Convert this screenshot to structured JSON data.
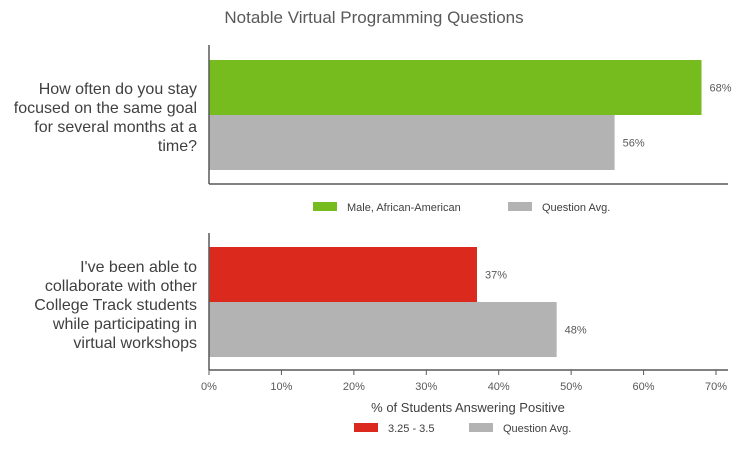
{
  "chart_data": {
    "type": "bar",
    "orientation": "horizontal",
    "title": "Notable Virtual Programming Questions",
    "xlabel": "% of Students Answering Positive",
    "xlim": [
      0,
      70
    ],
    "xticks": [
      "0%",
      "10%",
      "20%",
      "30%",
      "40%",
      "50%",
      "60%",
      "70%"
    ],
    "grid": false,
    "panels": [
      {
        "question": "How often do you stay focused on the same goal for several months at a time?",
        "question_lines": [
          "How often do you stay",
          "focused on the same goal",
          "for several months at a",
          "time?"
        ],
        "series": [
          {
            "name": "Male, African-American",
            "value": 68,
            "label": "68%",
            "color": "#77bc1f"
          },
          {
            "name": "Question Avg.",
            "value": 56,
            "label": "56%",
            "color": "#b3b3b3"
          }
        ]
      },
      {
        "question": "I've been able to collaborate with other College Track students while participating in virtual workshops",
        "question_lines": [
          "I've been able to",
          "collaborate with other",
          "College Track students",
          "while participating in",
          "virtual workshops"
        ],
        "series": [
          {
            "name": "3.25 - 3.5",
            "value": 37,
            "label": "37%",
            "color": "#dc291e"
          },
          {
            "name": "Question Avg.",
            "value": 48,
            "label": "48%",
            "color": "#b3b3b3"
          }
        ]
      }
    ]
  }
}
